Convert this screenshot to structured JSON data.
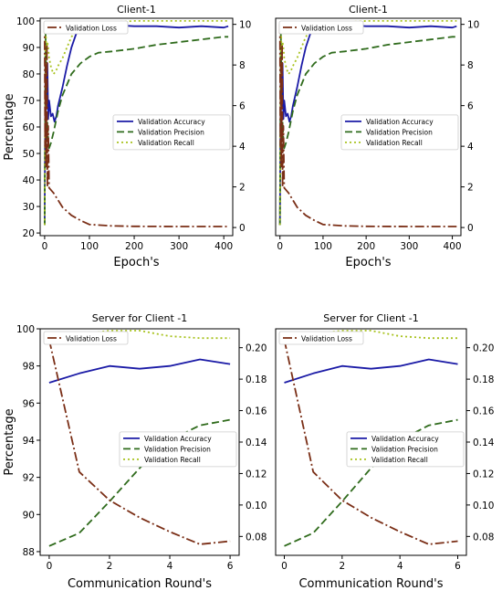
{
  "chart_data": [
    {
      "type": "line",
      "title": "Client-1",
      "xlabel": "Epoch's",
      "ylabel": "Percentage",
      "xlim": [
        -10,
        420
      ],
      "ylim": [
        19,
        101
      ],
      "y2lim": [
        -0.4,
        10.3
      ],
      "xticks": [
        0,
        100,
        200,
        300,
        400
      ],
      "yticks": [
        20,
        30,
        40,
        50,
        60,
        70,
        80,
        90,
        100
      ],
      "y2ticks": [
        0,
        2,
        4,
        6,
        8,
        10
      ],
      "legend_left": {
        "position": "top-left",
        "entries": [
          "Validation Loss"
        ]
      },
      "legend_right": {
        "position": "center-right",
        "entries": [
          "Validation Accuracy",
          "Validation Precision",
          "Validation Recall"
        ]
      },
      "series": [
        {
          "name": "Validation Accuracy",
          "axis": "left",
          "color": "#1a1aa6",
          "dash": "solid",
          "x": [
            0,
            2,
            4,
            6,
            8,
            10,
            14,
            18,
            22,
            26,
            30,
            40,
            50,
            60,
            70,
            80,
            100,
            150,
            200,
            250,
            300,
            350,
            400,
            410
          ],
          "y": [
            23,
            92,
            72,
            84,
            63,
            70,
            64,
            65,
            62,
            64,
            68,
            75,
            83,
            90,
            95,
            97,
            98,
            98.5,
            98,
            98,
            97.5,
            98,
            97.5,
            98
          ]
        },
        {
          "name": "Validation Precision",
          "axis": "left",
          "color": "#2f6b1c",
          "dash": "8,4",
          "x": [
            0,
            2,
            4,
            6,
            8,
            10,
            14,
            20,
            30,
            40,
            50,
            60,
            80,
            100,
            120,
            150,
            200,
            250,
            300,
            350,
            400,
            410
          ],
          "y": [
            23,
            96,
            50,
            62,
            55,
            52,
            54,
            58,
            66,
            72,
            76,
            80,
            84,
            86.5,
            88,
            88.5,
            89.5,
            91,
            92,
            93,
            94,
            94
          ]
        },
        {
          "name": "Validation Recall",
          "axis": "left",
          "color": "#a8c21e",
          "dash": "2,3",
          "x": [
            0,
            2,
            4,
            6,
            8,
            10,
            15,
            20,
            25,
            30,
            40,
            50,
            60,
            80,
            100,
            150,
            200,
            300,
            400,
            410
          ],
          "y": [
            23,
            99,
            88,
            92,
            90,
            86,
            82,
            80,
            81,
            83,
            86,
            90,
            94,
            98,
            99.5,
            99.5,
            100,
            100,
            100,
            100
          ]
        },
        {
          "name": "Validation Loss",
          "axis": "right",
          "color": "#7a2e16",
          "dash": "10,3,2,3",
          "x": [
            0,
            1,
            2,
            3,
            4,
            5,
            6,
            8,
            10,
            20,
            40,
            60,
            80,
            100,
            150,
            200,
            300,
            400,
            410
          ],
          "y": [
            10.0,
            4.0,
            8.0,
            3.0,
            5.5,
            9.0,
            2.0,
            5.0,
            1.95,
            1.7,
            1.0,
            0.6,
            0.35,
            0.15,
            0.08,
            0.06,
            0.05,
            0.05,
            0.05
          ]
        }
      ]
    },
    {
      "type": "line",
      "title": "Client-1",
      "xlabel": "Epoch's",
      "ylabel": "",
      "xlim": [
        -10,
        420
      ],
      "ylim": [
        19,
        101
      ],
      "y2lim": [
        -0.4,
        10.3
      ],
      "xticks": [
        0,
        100,
        200,
        300,
        400
      ],
      "yticks": [],
      "y2ticks": [
        0,
        2,
        4,
        6,
        8,
        10
      ],
      "legend_left": {
        "position": "top-left",
        "entries": [
          "Validation Loss"
        ]
      },
      "legend_right": {
        "position": "center-right",
        "entries": [
          "Validation Accuracy",
          "Validation Precision",
          "Validation Recall"
        ]
      },
      "series": [
        {
          "name": "Validation Accuracy",
          "axis": "left",
          "color": "#1a1aa6",
          "dash": "solid",
          "x": [
            0,
            2,
            4,
            6,
            8,
            10,
            14,
            18,
            22,
            26,
            30,
            40,
            50,
            60,
            70,
            80,
            100,
            150,
            200,
            250,
            300,
            350,
            400,
            410
          ],
          "y": [
            23,
            92,
            72,
            84,
            63,
            70,
            64,
            65,
            62,
            64,
            68,
            75,
            83,
            90,
            95,
            97,
            98,
            98.5,
            98,
            98,
            97.5,
            98,
            97.5,
            98
          ]
        },
        {
          "name": "Validation Precision",
          "axis": "left",
          "color": "#2f6b1c",
          "dash": "8,4",
          "x": [
            0,
            2,
            4,
            6,
            8,
            10,
            14,
            20,
            30,
            40,
            50,
            60,
            80,
            100,
            120,
            150,
            200,
            250,
            300,
            350,
            400,
            410
          ],
          "y": [
            23,
            96,
            50,
            62,
            55,
            52,
            54,
            58,
            66,
            72,
            76,
            80,
            84,
            86.5,
            88,
            88.5,
            89.5,
            91,
            92,
            93,
            94,
            94
          ]
        },
        {
          "name": "Validation Recall",
          "axis": "left",
          "color": "#a8c21e",
          "dash": "2,3",
          "x": [
            0,
            2,
            4,
            6,
            8,
            10,
            15,
            20,
            25,
            30,
            40,
            50,
            60,
            80,
            100,
            150,
            200,
            300,
            400,
            410
          ],
          "y": [
            23,
            99,
            88,
            92,
            90,
            86,
            82,
            80,
            81,
            83,
            86,
            90,
            94,
            98,
            99.5,
            99.5,
            100,
            100,
            100,
            100
          ]
        },
        {
          "name": "Validation Loss",
          "axis": "right",
          "color": "#7a2e16",
          "dash": "10,3,2,3",
          "x": [
            0,
            1,
            2,
            3,
            4,
            5,
            6,
            8,
            10,
            20,
            40,
            60,
            80,
            100,
            150,
            200,
            300,
            400,
            410
          ],
          "y": [
            10.0,
            4.0,
            8.0,
            3.0,
            5.5,
            9.0,
            2.0,
            5.0,
            1.95,
            1.7,
            1.0,
            0.6,
            0.35,
            0.15,
            0.08,
            0.06,
            0.05,
            0.05,
            0.05
          ]
        }
      ]
    },
    {
      "type": "line",
      "title": "Server for Client -1",
      "xlabel": "Communication Round's",
      "ylabel": "Percentage",
      "xlim": [
        -0.3,
        6.3
      ],
      "ylim": [
        87.8,
        100.0
      ],
      "y2lim": [
        0.068,
        0.212
      ],
      "xticks": [
        0,
        2,
        4,
        6
      ],
      "yticks": [
        88,
        90,
        92,
        94,
        96,
        98,
        100
      ],
      "y2ticks": [
        0.08,
        0.1,
        0.12,
        0.14,
        0.16,
        0.18,
        0.2
      ],
      "legend_left": {
        "position": "top-left",
        "entries": [
          "Validation Loss"
        ]
      },
      "legend_right": {
        "position": "center-right",
        "entries": [
          "Validation Accuracy",
          "Validation Precision",
          "Validation Recall"
        ]
      },
      "series": [
        {
          "name": "Validation Accuracy",
          "axis": "left",
          "color": "#1a1aa6",
          "dash": "solid",
          "x": [
            0,
            1,
            2,
            3,
            4,
            5,
            6
          ],
          "y": [
            97.1,
            97.6,
            98.0,
            97.85,
            98.0,
            98.35,
            98.1
          ]
        },
        {
          "name": "Validation Precision",
          "axis": "left",
          "color": "#2f6b1c",
          "dash": "8,4",
          "x": [
            0,
            1,
            2,
            3,
            4,
            5,
            6
          ],
          "y": [
            88.3,
            89.0,
            90.7,
            92.5,
            94.0,
            94.8,
            95.1
          ]
        },
        {
          "name": "Validation Recall",
          "axis": "left",
          "color": "#a8c21e",
          "dash": "2,3",
          "x": [
            0,
            1,
            2,
            3,
            4,
            5,
            6
          ],
          "y": [
            99.2,
            99.7,
            99.9,
            99.9,
            99.6,
            99.5,
            99.5
          ]
        },
        {
          "name": "Validation Loss",
          "axis": "right",
          "color": "#7a2e16",
          "dash": "10,3,2,3",
          "x": [
            0,
            1,
            2,
            3,
            4,
            5,
            6
          ],
          "y": [
            0.205,
            0.121,
            0.103,
            0.092,
            0.083,
            0.075,
            0.077
          ]
        }
      ]
    },
    {
      "type": "line",
      "title": "Server for Client -1",
      "xlabel": "Communication Round's",
      "ylabel": "",
      "xlim": [
        -0.3,
        6.3
      ],
      "ylim": [
        87.8,
        100.0
      ],
      "y2lim": [
        0.068,
        0.212
      ],
      "xticks": [
        0,
        2,
        4,
        6
      ],
      "yticks": [],
      "y2ticks": [
        0.08,
        0.1,
        0.12,
        0.14,
        0.16,
        0.18,
        0.2
      ],
      "legend_left": {
        "position": "top-left",
        "entries": [
          "Validation Loss"
        ]
      },
      "legend_right": {
        "position": "center-right",
        "entries": [
          "Validation Accuracy",
          "Validation Precision",
          "Validation Recall"
        ]
      },
      "series": [
        {
          "name": "Validation Accuracy",
          "axis": "left",
          "color": "#1a1aa6",
          "dash": "solid",
          "x": [
            0,
            1,
            2,
            3,
            4,
            5,
            6
          ],
          "y": [
            97.1,
            97.6,
            98.0,
            97.85,
            98.0,
            98.35,
            98.1
          ]
        },
        {
          "name": "Validation Precision",
          "axis": "left",
          "color": "#2f6b1c",
          "dash": "8,4",
          "x": [
            0,
            1,
            2,
            3,
            4,
            5,
            6
          ],
          "y": [
            88.3,
            89.0,
            90.7,
            92.5,
            94.0,
            94.8,
            95.1
          ]
        },
        {
          "name": "Validation Recall",
          "axis": "left",
          "color": "#a8c21e",
          "dash": "2,3",
          "x": [
            0,
            1,
            2,
            3,
            4,
            5,
            6
          ],
          "y": [
            99.2,
            99.7,
            99.9,
            99.9,
            99.6,
            99.5,
            99.5
          ]
        },
        {
          "name": "Validation Loss",
          "axis": "right",
          "color": "#7a2e16",
          "dash": "10,3,2,3",
          "x": [
            0,
            1,
            2,
            3,
            4,
            5,
            6
          ],
          "y": [
            0.205,
            0.121,
            0.103,
            0.092,
            0.083,
            0.075,
            0.077
          ]
        }
      ]
    }
  ]
}
